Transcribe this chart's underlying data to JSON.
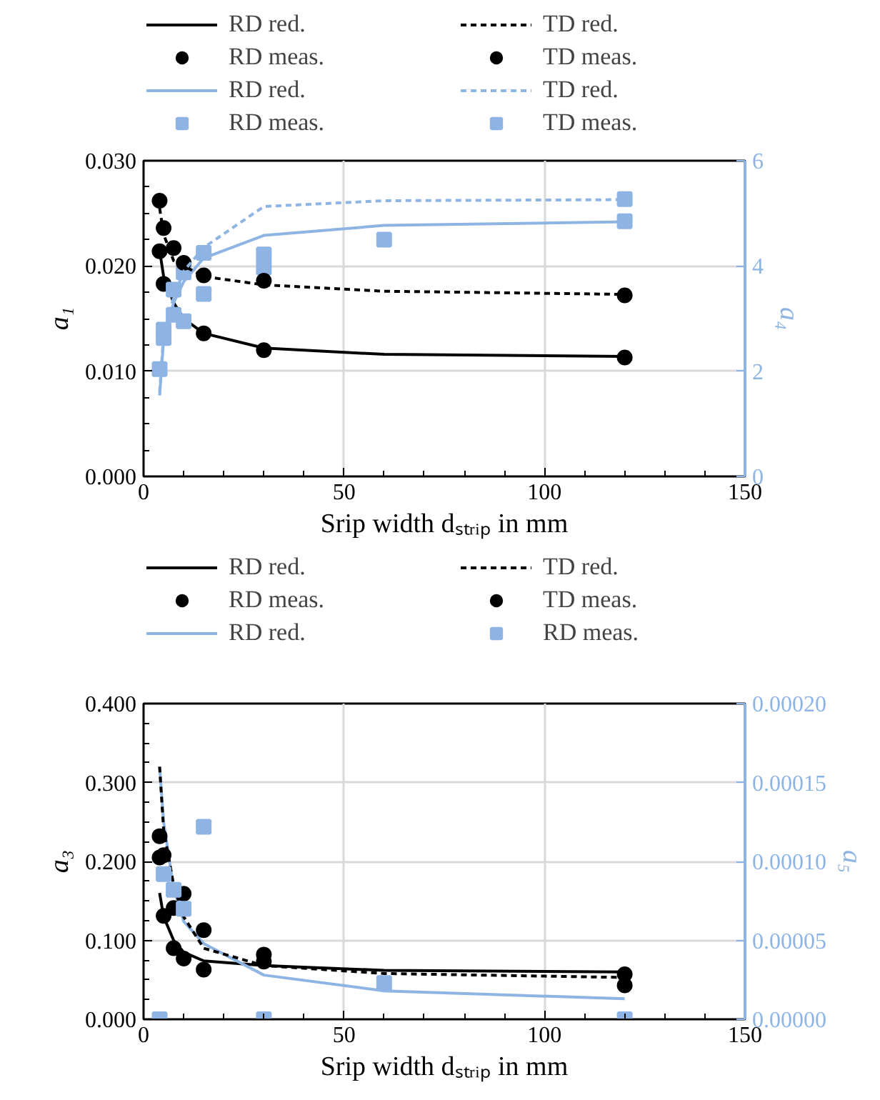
{
  "chart_data": [
    {
      "type": "line",
      "xlabel": "Srip width dₛₜᵣᵢₚ in mm",
      "ylabel": "a₁",
      "y2label": "a₄",
      "xlim": [
        0,
        150
      ],
      "xticks": [
        0,
        50,
        100,
        150
      ],
      "ylim": [
        0,
        0.03
      ],
      "yticks": [
        {
          "value": 0,
          "label": "0.000"
        },
        {
          "value": 0.01,
          "label": "0.010"
        },
        {
          "value": 0.02,
          "label": "0.020"
        },
        {
          "value": 0.03,
          "label": "0.030"
        }
      ],
      "y2lim": [
        0,
        6
      ],
      "y2ticks": [
        0,
        2,
        4,
        6
      ],
      "grid": true,
      "legend": "top",
      "series": [
        {
          "name": "RD red.",
          "color": "#000000",
          "line_style": "solid",
          "x": [
            4,
            5,
            7.5,
            10,
            15,
            30,
            60,
            120
          ],
          "values": [
            0.0215,
            0.019,
            0.0165,
            0.015,
            0.0136,
            0.0122,
            0.0116,
            0.0114
          ]
        },
        {
          "name": "RD meas.",
          "type": "scatter",
          "color": "#000000",
          "marker": "circle",
          "x": [
            4,
            5,
            15,
            30,
            120
          ],
          "values": [
            0.0214,
            0.0183,
            0.0136,
            0.012,
            0.0113
          ]
        },
        {
          "name": "RD red.",
          "axis": "y2",
          "color": "#8eb4e3",
          "line_style": "solid",
          "x": [
            4,
            5,
            7.5,
            10,
            15,
            30,
            60,
            120
          ],
          "values": [
            1.54,
            2.6,
            3.3,
            3.7,
            4.15,
            4.58,
            4.77,
            4.84
          ]
        },
        {
          "name": "RD meas.",
          "type": "scatter",
          "axis": "y2",
          "color": "#8eb4e3",
          "marker": "square",
          "x": [
            5,
            7.5,
            10,
            15,
            30,
            60,
            120
          ],
          "values": [
            2.79,
            3.55,
            3.88,
            4.25,
            3.97,
            4.5,
            4.85
          ]
        },
        {
          "name": "TD red.",
          "color": "#000000",
          "line_style": "dashed",
          "x": [
            4,
            5,
            7.5,
            10,
            15,
            30,
            60,
            120
          ],
          "values": [
            0.0255,
            0.023,
            0.0205,
            0.02,
            0.019,
            0.0182,
            0.0176,
            0.0173
          ]
        },
        {
          "name": "TD meas.",
          "type": "scatter",
          "color": "#000000",
          "marker": "circle",
          "x": [
            4,
            5,
            7.5,
            10,
            15,
            30,
            120
          ],
          "values": [
            0.0262,
            0.0236,
            0.0217,
            0.0203,
            0.0191,
            0.0186,
            0.0172
          ]
        },
        {
          "name": "TD red.",
          "axis": "y2",
          "color": "#8eb4e3",
          "line_style": "dashed",
          "x": [
            4,
            5,
            7.5,
            10,
            15,
            30,
            60,
            120
          ],
          "values": [
            1.6,
            2.7,
            3.4,
            3.9,
            4.35,
            5.13,
            5.24,
            5.26
          ]
        },
        {
          "name": "TD meas.",
          "type": "scatter",
          "axis": "y2",
          "color": "#8eb4e3",
          "marker": "square",
          "x": [
            4,
            5,
            7.5,
            10,
            15,
            30,
            120
          ],
          "values": [
            2.04,
            2.63,
            3.07,
            2.95,
            3.47,
            4.22,
            5.27
          ]
        }
      ]
    },
    {
      "type": "line",
      "xlabel": "Srip width dₛₜᵣᵢₚ in mm",
      "ylabel": "a₃",
      "y2label": "a₅",
      "xlim": [
        0,
        150
      ],
      "xticks": [
        0,
        50,
        100,
        150
      ],
      "ylim": [
        0,
        0.4
      ],
      "yticks": [
        {
          "value": 0,
          "label": "0.000"
        },
        {
          "value": 0.1,
          "label": "0.100"
        },
        {
          "value": 0.2,
          "label": "0.200"
        },
        {
          "value": 0.3,
          "label": "0.300"
        },
        {
          "value": 0.4,
          "label": "0.400"
        }
      ],
      "y2lim": [
        0,
        0.0002
      ],
      "y2ticks": [
        {
          "value": 0,
          "label": "0.00000"
        },
        {
          "value": 5e-05,
          "label": "0.00005"
        },
        {
          "value": 0.0001,
          "label": "0.00010"
        },
        {
          "value": 0.00015,
          "label": "0.00015"
        },
        {
          "value": 0.0002,
          "label": "0.00020"
        }
      ],
      "grid": true,
      "legend": "top",
      "series": [
        {
          "name": "RD red.",
          "color": "#000000",
          "line_style": "solid",
          "x": [
            4,
            5,
            7.5,
            10,
            15,
            30,
            60,
            120
          ],
          "values": [
            0.16,
            0.13,
            0.1,
            0.085,
            0.074,
            0.068,
            0.062,
            0.06
          ]
        },
        {
          "name": "RD meas.",
          "type": "scatter",
          "color": "#000000",
          "marker": "circle",
          "x": [
            4,
            5,
            7.5,
            10,
            15,
            30,
            120
          ],
          "values": [
            0.205,
            0.131,
            0.09,
            0.077,
            0.063,
            0.082,
            0.057
          ]
        },
        {
          "name": "RD red.",
          "axis": "y2",
          "color": "#8eb4e3",
          "line_style": "solid",
          "x": [
            4,
            5,
            7.5,
            10,
            15,
            30,
            60,
            120
          ],
          "values": [
            0.00016,
            0.000125,
            8.3e-05,
            6.2e-05,
            4.8e-05,
            2.8e-05,
            1.8e-05,
            1.3e-05
          ]
        },
        {
          "name": "TD red.",
          "color": "#000000",
          "line_style": "dashed",
          "x": [
            4,
            5,
            7.5,
            10,
            15,
            30,
            60,
            120
          ],
          "values": [
            0.32,
            0.24,
            0.17,
            0.13,
            0.09,
            0.068,
            0.058,
            0.053
          ]
        },
        {
          "name": "TD meas.",
          "type": "scatter",
          "color": "#000000",
          "marker": "circle",
          "x": [
            4,
            5,
            7.5,
            10,
            15,
            30,
            120
          ],
          "values": [
            0.232,
            0.208,
            0.141,
            0.159,
            0.113,
            0.073,
            0.043
          ]
        },
        {
          "name": "RD meas.",
          "type": "scatter",
          "axis": "y2",
          "color": "#8eb4e3",
          "marker": "square",
          "x": [
            4,
            5,
            7.5,
            10,
            15,
            30,
            60,
            120
          ],
          "values": [
            0,
            9.2e-05,
            8.2e-05,
            7e-05,
            0.000122,
            0,
            2.3e-05,
            0
          ]
        }
      ]
    }
  ]
}
